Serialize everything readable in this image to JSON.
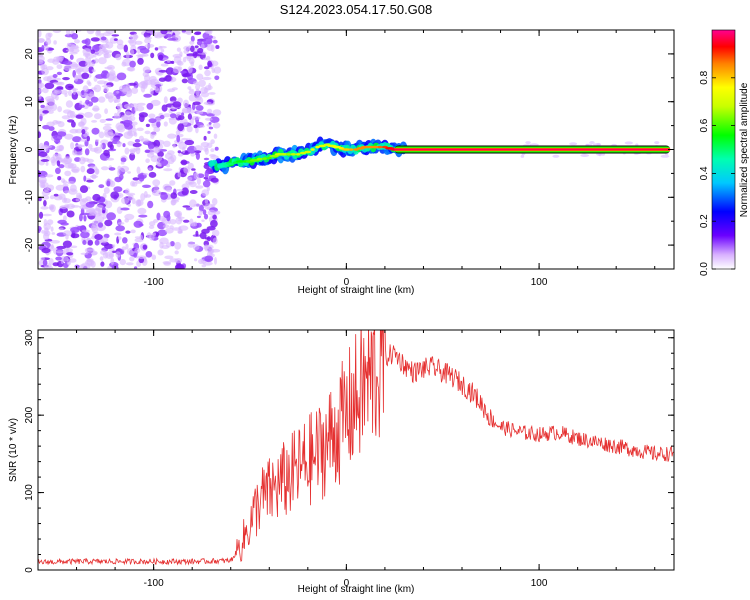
{
  "figure_title": "S124.2023.054.17.50.G08",
  "chart_data": [
    {
      "type": "heatmap",
      "title": "S124.2023.054.17.50.G08",
      "xlabel": "Height of straight line (km)",
      "ylabel": "Frequency (Hz)",
      "xlim": [
        -160,
        170
      ],
      "ylim": [
        -25,
        25
      ],
      "xticks": [
        -100,
        0,
        100
      ],
      "xtick_labels": [
        "-100",
        "0",
        "100"
      ],
      "yticks": [
        -20,
        -10,
        0,
        10,
        20
      ],
      "ytick_labels": [
        "-20",
        "-10",
        "0",
        "10",
        "20"
      ],
      "noise_region_x": [
        -160,
        -70
      ],
      "signal_track": {
        "x": [
          -70,
          -65,
          -60,
          -55,
          -50,
          -45,
          -40,
          -35,
          -30,
          -25,
          -20,
          -15,
          -10,
          -5,
          0,
          5,
          10,
          15,
          20,
          25,
          30,
          50,
          100,
          150,
          168
        ],
        "freq_hz": [
          -3,
          -3.5,
          -3,
          -2.5,
          -2.5,
          -2,
          -1.8,
          -1,
          -1,
          -1,
          -0.5,
          0.5,
          1,
          0.5,
          0,
          0,
          0.5,
          0.5,
          0.5,
          0,
          0,
          0,
          0,
          0,
          0
        ],
        "amplitude": [
          0.35,
          0.45,
          0.5,
          0.55,
          0.6,
          0.65,
          0.6,
          0.7,
          0.65,
          0.7,
          0.7,
          0.75,
          0.7,
          0.75,
          0.8,
          0.85,
          0.85,
          0.85,
          0.9,
          0.95,
          0.95,
          0.95,
          0.95,
          0.95,
          0.95
        ]
      },
      "colorbar": {
        "label": "Normalized spectral amplitude",
        "range": [
          0,
          1
        ],
        "ticks": [
          0.0,
          0.2,
          0.4,
          0.6,
          0.8
        ],
        "tick_labels": [
          "0.0",
          "0.2",
          "0.4",
          "0.6",
          "0.8"
        ]
      }
    },
    {
      "type": "line",
      "xlabel": "Height of straight line (km)",
      "ylabel": "SNR (10 * v/v)",
      "xlim": [
        -160,
        170
      ],
      "ylim": [
        0,
        310
      ],
      "xticks": [
        -100,
        0,
        100
      ],
      "xtick_labels": [
        "-100",
        "0",
        "100"
      ],
      "yticks": [
        0,
        100,
        200,
        300
      ],
      "ytick_labels": [
        "0",
        "100",
        "200",
        "300"
      ],
      "series": [
        {
          "name": "SNR",
          "color": "#e53030",
          "x": [
            -160,
            -140,
            -120,
            -100,
            -80,
            -60,
            -55,
            -50,
            -45,
            -40,
            -35,
            -30,
            -25,
            -20,
            -15,
            -10,
            -5,
            0,
            5,
            10,
            15,
            20,
            25,
            30,
            35,
            40,
            45,
            50,
            55,
            60,
            65,
            70,
            75,
            80,
            90,
            100,
            110,
            120,
            130,
            140,
            150,
            160,
            170
          ],
          "y": [
            10,
            11,
            11,
            11,
            11,
            12,
            30,
            60,
            90,
            100,
            110,
            120,
            130,
            140,
            150,
            165,
            180,
            200,
            220,
            240,
            255,
            275,
            280,
            265,
            255,
            260,
            262,
            255,
            250,
            240,
            230,
            215,
            195,
            185,
            178,
            175,
            178,
            170,
            165,
            160,
            155,
            150,
            150
          ]
        }
      ]
    }
  ],
  "colors": {
    "noise_violet": "#7a1bf0",
    "noise_light": "#d9b8ff",
    "snr_line": "#e53030"
  }
}
